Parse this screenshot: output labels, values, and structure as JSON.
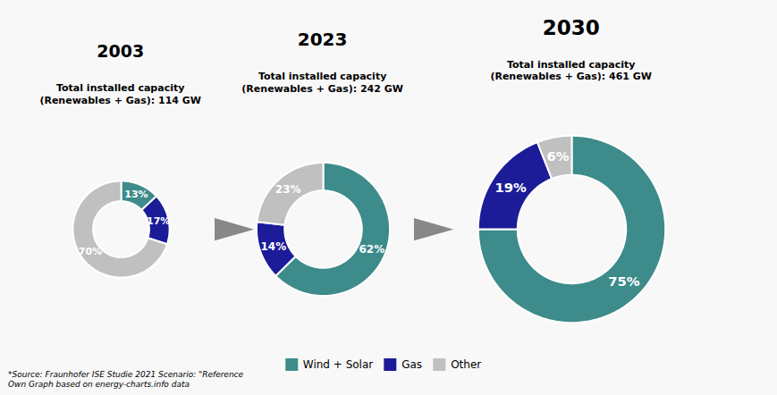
{
  "chart_data": [
    {
      "type": "pie",
      "title": "2003",
      "subtitle": "Total installed capacity\n(Renewables + Gas): 114 GW",
      "categories": [
        "Wind + Solar",
        "Gas",
        "Other"
      ],
      "values": [
        13,
        17,
        70
      ],
      "value_labels": [
        "13%",
        "17%",
        "70%"
      ],
      "colors": [
        "#3d8b8b",
        "#1c1c99",
        "#c0c0c0"
      ],
      "data_labels": true,
      "legend": "bottom",
      "annotations": [
        "*Source: Fraunhofer ISE Studie 2021 Scenario: \"Reference\nOwn Graph based on energy-charts.info data"
      ]
    },
    {
      "type": "pie",
      "title": "2023",
      "subtitle": "Total installed capacity\n(Renewables + Gas): 242 GW",
      "categories": [
        "Wind + Solar",
        "Gas",
        "Other"
      ],
      "values": [
        62,
        14,
        23
      ],
      "value_labels": [
        "62%",
        "14%",
        "23%"
      ],
      "colors": [
        "#3d8b8b",
        "#1c1c99",
        "#c0c0c0"
      ],
      "data_labels": true,
      "legend": "bottom"
    },
    {
      "type": "pie",
      "title": "2030",
      "subtitle": "Total installed capacity\n(Renewables + Gas): 461 GW",
      "categories": [
        "Wind + Solar",
        "Gas",
        "Other"
      ],
      "values": [
        75,
        19,
        6
      ],
      "value_labels": [
        "75%",
        "19%",
        "6%"
      ],
      "colors": [
        "#3d8b8b",
        "#1c1c99",
        "#c0c0c0"
      ],
      "data_labels": true,
      "legend": "bottom"
    }
  ]
}
